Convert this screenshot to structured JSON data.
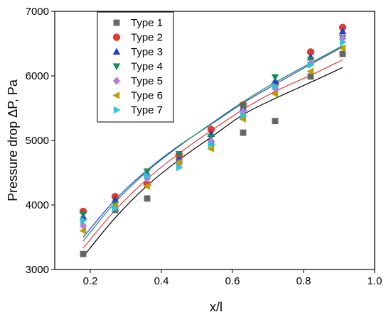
{
  "chart_data": {
    "type": "scatter",
    "title": "",
    "xlabel": "x/l",
    "ylabel": "Pressure drop ΔP, Pa",
    "xlim": [
      0.1,
      1.0
    ],
    "ylim": [
      3000,
      7000
    ],
    "x_ticks": [
      "0.2",
      "0.4",
      "0.6",
      "0.8",
      "1.0"
    ],
    "y_ticks": [
      "3000",
      "4000",
      "5000",
      "6000",
      "7000"
    ],
    "legend_position": "top-left",
    "x": [
      0.18,
      0.27,
      0.36,
      0.45,
      0.54,
      0.63,
      0.72,
      0.82,
      0.91
    ],
    "series": [
      {
        "name": "Type 1",
        "color": "#666666",
        "marker": "square",
        "values": [
          3240,
          3920,
          4100,
          4710,
          4960,
          5120,
          5300,
          5990,
          6340
        ]
      },
      {
        "name": "Type 2",
        "color": "#e03c31",
        "marker": "circle",
        "values": [
          3900,
          4130,
          4320,
          4780,
          5170,
          5550,
          5870,
          6370,
          6750
        ]
      },
      {
        "name": "Type 3",
        "color": "#1f3fcf",
        "marker": "triangle-up",
        "values": [
          3820,
          4080,
          4490,
          4700,
          5100,
          5510,
          5920,
          6290,
          6690
        ]
      },
      {
        "name": "Type 4",
        "color": "#1a8a5a",
        "marker": "triangle-down",
        "values": [
          3860,
          4010,
          4520,
          4790,
          5050,
          5540,
          5980,
          6250,
          6590
        ]
      },
      {
        "name": "Type 5",
        "color": "#b57ce0",
        "marker": "diamond",
        "values": [
          3680,
          3960,
          4410,
          4650,
          4990,
          5450,
          5810,
          6200,
          6580
        ]
      },
      {
        "name": "Type 6",
        "color": "#b8a000",
        "marker": "triangle-left",
        "values": [
          3600,
          3990,
          4290,
          4660,
          4870,
          5330,
          5720,
          6070,
          6430
        ]
      },
      {
        "name": "Type 7",
        "color": "#2ec4d4",
        "marker": "triangle-right",
        "values": [
          3760,
          3950,
          4450,
          4580,
          4940,
          5390,
          5840,
          6170,
          6520
        ]
      }
    ],
    "fits": [
      {
        "color": "#000000",
        "values": [
          3200,
          3800,
          4300,
          4700,
          5050,
          5400,
          5650,
          5900,
          6130
        ]
      },
      {
        "color": "#e03c31",
        "values": [
          3330,
          3920,
          4400,
          4800,
          5150,
          5480,
          5760,
          6010,
          6250
        ]
      },
      {
        "color": "#1f3fcf",
        "values": [
          3500,
          4080,
          4540,
          4920,
          5250,
          5580,
          5870,
          6180,
          6450
        ]
      },
      {
        "color": "#1a8a5a",
        "values": [
          3440,
          4040,
          4520,
          4910,
          5260,
          5600,
          5900,
          6200,
          6470
        ]
      }
    ]
  }
}
